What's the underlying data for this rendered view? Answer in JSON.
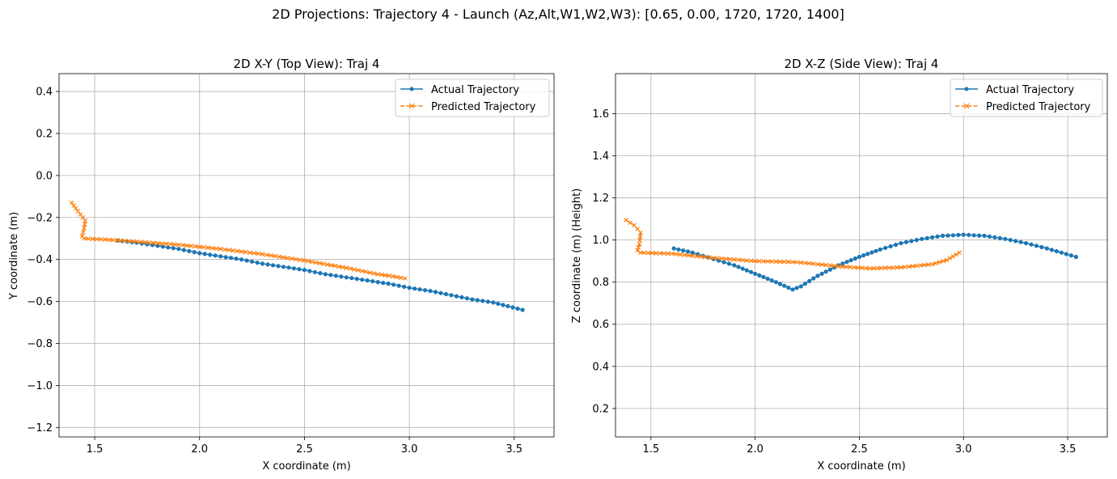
{
  "figure": {
    "suptitle": "2D Projections: Trajectory 4 - Launch (Az,Alt,W1,W2,W3): [0.65, 0.00, 1720, 1720, 1400]"
  },
  "chart_data": [
    {
      "type": "line",
      "title": "2D X-Y (Top View): Traj 4",
      "xlabel": "X coordinate (m)",
      "ylabel": "Y coordinate (m)",
      "xlim": [
        1.33,
        3.69
      ],
      "ylim": [
        -1.245,
        0.485
      ],
      "xticks": [
        1.5,
        2.0,
        2.5,
        3.0,
        3.5
      ],
      "xtick_labels": [
        "1.5",
        "2.0",
        "2.5",
        "3.0",
        "3.5"
      ],
      "yticks": [
        0.4,
        0.2,
        0.0,
        -0.2,
        -0.4,
        -0.6,
        -0.8,
        -1.0,
        -1.2
      ],
      "ytick_labels": [
        "0.4",
        "0.2",
        "0.0",
        "−0.2",
        "−0.4",
        "−0.6",
        "−0.8",
        "−1.0",
        "−1.2"
      ],
      "grid": true,
      "legend_position": "top-right",
      "series": [
        {
          "name": "Actual Trajectory",
          "color": "#1f77b4",
          "linestyle": "solid",
          "marker": "dot",
          "x": [
            1.61,
            1.7,
            1.8,
            1.9,
            2.0,
            2.1,
            2.2,
            2.3,
            2.4,
            2.5,
            2.6,
            2.7,
            2.8,
            2.9,
            3.0,
            3.1,
            3.2,
            3.3,
            3.4,
            3.54
          ],
          "y": [
            -0.31,
            -0.32,
            -0.335,
            -0.35,
            -0.37,
            -0.385,
            -0.4,
            -0.42,
            -0.435,
            -0.45,
            -0.47,
            -0.485,
            -0.5,
            -0.515,
            -0.535,
            -0.55,
            -0.57,
            -0.59,
            -0.605,
            -0.64
          ]
        },
        {
          "name": "Predicted Trajectory",
          "color": "#ff7f0e",
          "linestyle": "dashed",
          "marker": "x",
          "x": [
            1.39,
            1.42,
            1.455,
            1.45,
            1.44,
            1.45,
            1.55,
            1.7,
            1.9,
            2.1,
            2.3,
            2.5,
            2.7,
            2.85,
            2.92,
            2.98
          ],
          "y": [
            -0.13,
            -0.17,
            -0.215,
            -0.25,
            -0.29,
            -0.3,
            -0.305,
            -0.315,
            -0.33,
            -0.35,
            -0.375,
            -0.405,
            -0.44,
            -0.47,
            -0.48,
            -0.49
          ]
        }
      ]
    },
    {
      "type": "line",
      "title": "2D X-Z (Side View): Traj 4",
      "xlabel": "X coordinate (m)",
      "ylabel": "Z coordinate (m) (Height)",
      "xlim": [
        1.33,
        3.69
      ],
      "ylim": [
        0.065,
        1.79
      ],
      "xticks": [
        1.5,
        2.0,
        2.5,
        3.0,
        3.5
      ],
      "xtick_labels": [
        "1.5",
        "2.0",
        "2.5",
        "3.0",
        "3.5"
      ],
      "yticks": [
        1.6,
        1.4,
        1.2,
        1.0,
        0.8,
        0.6,
        0.4,
        0.2
      ],
      "ytick_labels": [
        "1.6",
        "1.4",
        "1.2",
        "1.0",
        "0.8",
        "0.6",
        "0.4",
        "0.2"
      ],
      "grid": true,
      "legend_position": "top-right",
      "series": [
        {
          "name": "Actual Trajectory",
          "color": "#1f77b4",
          "linestyle": "solid",
          "marker": "dot",
          "x": [
            1.61,
            1.7,
            1.8,
            1.9,
            2.0,
            2.1,
            2.18,
            2.22,
            2.3,
            2.4,
            2.5,
            2.6,
            2.7,
            2.8,
            2.9,
            3.0,
            3.1,
            3.2,
            3.3,
            3.4,
            3.54
          ],
          "y": [
            0.96,
            0.94,
            0.91,
            0.88,
            0.84,
            0.8,
            0.765,
            0.78,
            0.83,
            0.88,
            0.92,
            0.955,
            0.985,
            1.005,
            1.02,
            1.025,
            1.02,
            1.005,
            0.985,
            0.96,
            0.92
          ]
        },
        {
          "name": "Predicted Trajectory",
          "color": "#ff7f0e",
          "linestyle": "dashed",
          "marker": "x",
          "x": [
            1.38,
            1.42,
            1.45,
            1.445,
            1.435,
            1.45,
            1.6,
            1.8,
            2.0,
            2.2,
            2.4,
            2.55,
            2.7,
            2.85,
            2.92,
            2.98
          ],
          "y": [
            1.095,
            1.07,
            1.035,
            0.98,
            0.95,
            0.94,
            0.935,
            0.915,
            0.9,
            0.895,
            0.875,
            0.865,
            0.87,
            0.885,
            0.905,
            0.94
          ]
        }
      ]
    }
  ]
}
